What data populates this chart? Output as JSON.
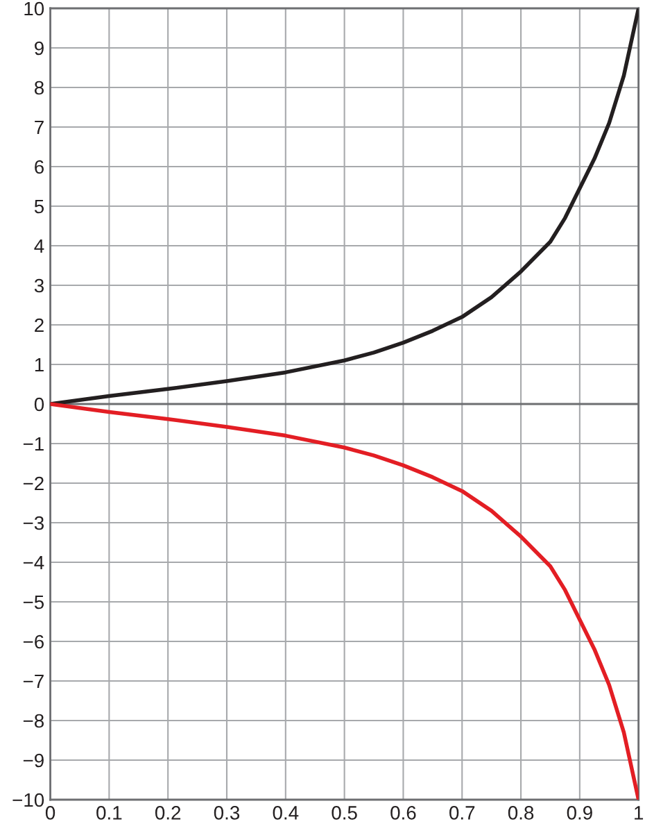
{
  "chart_data": {
    "type": "line",
    "x": [
      0,
      0.1,
      0.2,
      0.3,
      0.4,
      0.5,
      0.55,
      0.6,
      0.65,
      0.7,
      0.75,
      0.8,
      0.85,
      0.875,
      0.9,
      0.925,
      0.95,
      0.975,
      1
    ],
    "series": [
      {
        "color": "#231f20",
        "values": [
          0,
          0.2,
          0.38,
          0.58,
          0.8,
          1.1,
          1.3,
          1.55,
          1.85,
          2.2,
          2.7,
          3.35,
          4.1,
          4.7,
          5.45,
          6.2,
          7.1,
          8.3,
          10
        ]
      },
      {
        "color": "#e31e24",
        "values": [
          0,
          -0.2,
          -0.38,
          -0.58,
          -0.8,
          -1.1,
          -1.3,
          -1.55,
          -1.85,
          -2.2,
          -2.7,
          -3.35,
          -4.1,
          -4.7,
          -5.45,
          -6.2,
          -7.1,
          -8.3,
          -10
        ]
      }
    ],
    "xlim": [
      0,
      1
    ],
    "ylim": [
      -10,
      10
    ],
    "xticks": [
      0,
      0.1,
      0.2,
      0.3,
      0.4,
      0.5,
      0.6,
      0.7,
      0.8,
      0.9,
      1
    ],
    "yticks": [
      {
        "value": -10,
        "label": "−10"
      },
      {
        "value": -9,
        "label": "−9"
      },
      {
        "value": -8,
        "label": "−8"
      },
      {
        "value": -7,
        "label": "−7"
      },
      {
        "value": -6,
        "label": "−6"
      },
      {
        "value": -5,
        "label": "−5"
      },
      {
        "value": -4,
        "label": "−4"
      },
      {
        "value": -3,
        "label": "−3"
      },
      {
        "value": -2,
        "label": "−2"
      },
      {
        "value": -1,
        "label": "−1"
      },
      0,
      1,
      2,
      3,
      4,
      5,
      6,
      7,
      8,
      9,
      10
    ],
    "ref_lines": [
      {
        "axis": "y",
        "value": 0,
        "color": "#6d6e71"
      }
    ],
    "grid": true,
    "marker": "none",
    "line_style": "solid"
  }
}
